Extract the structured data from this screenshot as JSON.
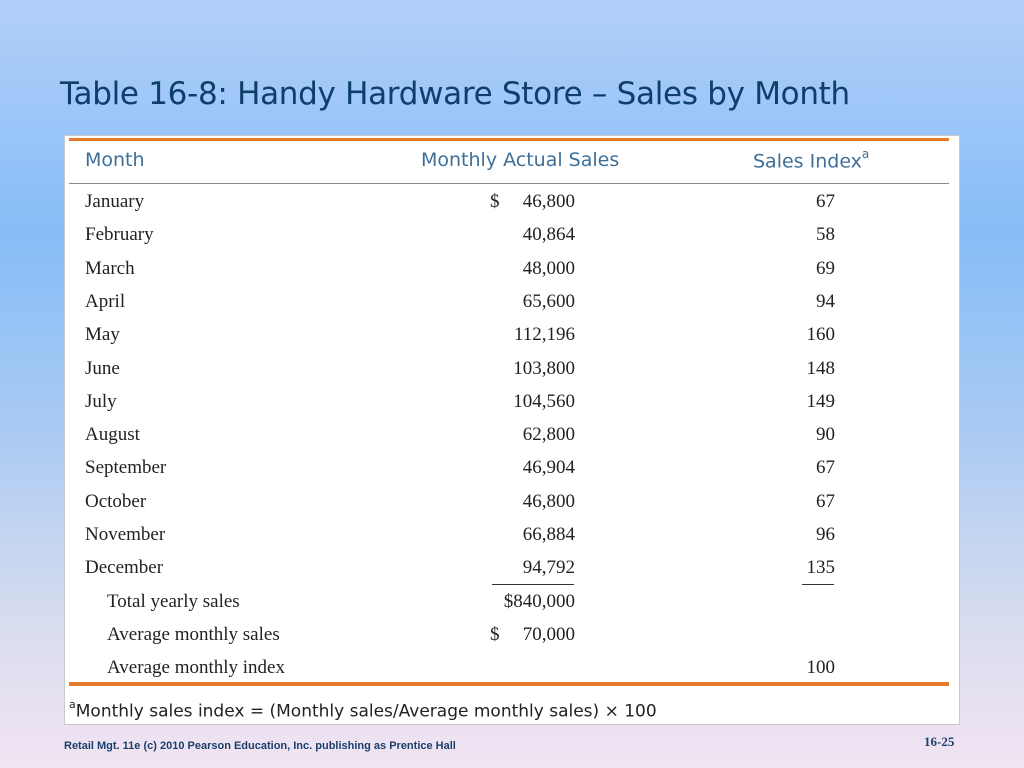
{
  "slide": {
    "title": "Table 16-8: Handy Hardware Store – Sales by Month",
    "footer_credit": "Retail Mgt. 11e (c) 2010 Pearson Education, Inc. publishing as Prentice Hall",
    "page_number": "16-25"
  },
  "table": {
    "headers": {
      "month": "Month",
      "sales": "Monthly Actual Sales",
      "index": "Sales Index",
      "index_marker": "a"
    },
    "rows": [
      {
        "label": "January",
        "dollar": "$",
        "sales": "46,800",
        "index": "67"
      },
      {
        "label": "February",
        "dollar": "",
        "sales": "40,864",
        "index": "58"
      },
      {
        "label": "March",
        "dollar": "",
        "sales": "48,000",
        "index": "69"
      },
      {
        "label": "April",
        "dollar": "",
        "sales": "65,600",
        "index": "94"
      },
      {
        "label": "May",
        "dollar": "",
        "sales": "112,196",
        "index": "160"
      },
      {
        "label": "June",
        "dollar": "",
        "sales": "103,800",
        "index": "148"
      },
      {
        "label": "July",
        "dollar": "",
        "sales": "104,560",
        "index": "149"
      },
      {
        "label": "August",
        "dollar": "",
        "sales": "62,800",
        "index": "90"
      },
      {
        "label": "September",
        "dollar": "",
        "sales": "46,904",
        "index": "67"
      },
      {
        "label": "October",
        "dollar": "",
        "sales": "46,800",
        "index": "67"
      },
      {
        "label": "November",
        "dollar": "",
        "sales": "66,884",
        "index": "96"
      },
      {
        "label": "December",
        "dollar": "",
        "sales": "94,792",
        "index": "135"
      }
    ],
    "summary": [
      {
        "label": "Total yearly sales",
        "dollar": "",
        "sales": "$840,000",
        "index": ""
      },
      {
        "label": "Average monthly sales",
        "dollar": "$",
        "sales": "70,000",
        "index": ""
      },
      {
        "label": "Average monthly index",
        "dollar": "",
        "sales": "",
        "index": "100"
      }
    ],
    "footnote_marker": "a",
    "footnote": "Monthly sales index = (Monthly sales/Average monthly sales) × 100"
  }
}
